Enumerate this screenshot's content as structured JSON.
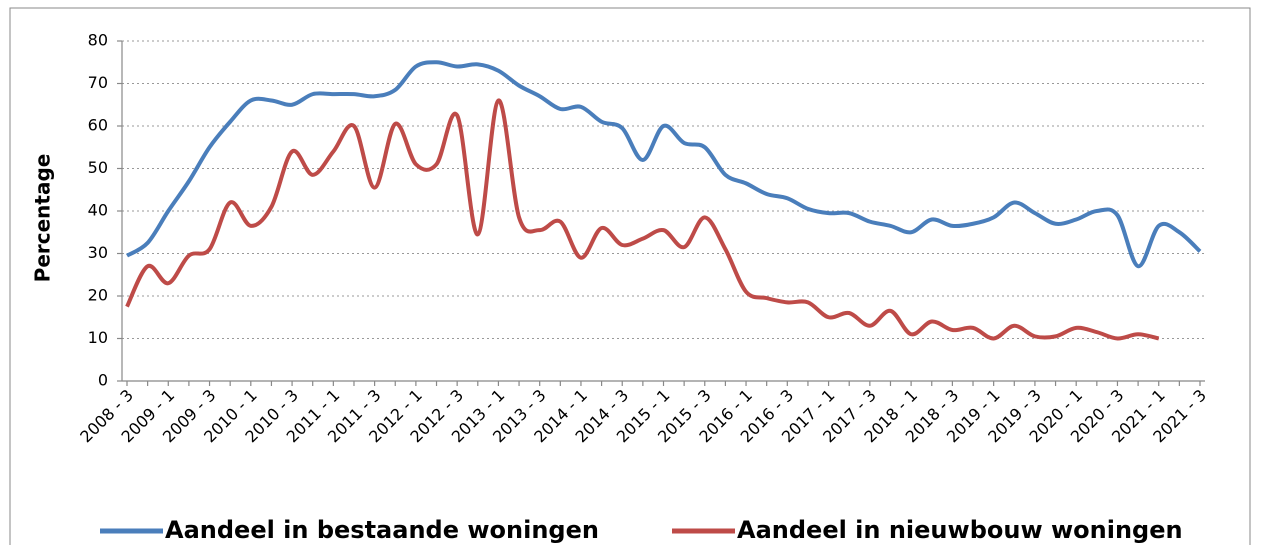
{
  "chart_data": {
    "type": "line",
    "y_label": "Percentage",
    "categories": [
      "2008 - 3",
      null,
      "2009 - 1",
      null,
      "2009 - 3",
      null,
      "2010 - 1",
      null,
      "2010 - 3",
      null,
      "2011 - 1",
      null,
      "2011 - 3",
      null,
      "2012 - 1",
      null,
      "2012 - 3",
      null,
      "2013 - 1",
      null,
      "2013 - 3",
      null,
      "2014 - 1",
      null,
      "2014 - 3",
      null,
      "2015 - 1",
      null,
      "2015 - 3",
      null,
      "2016 - 1",
      null,
      "2016 - 3",
      null,
      "2017 - 1",
      null,
      "2017 - 3",
      null,
      "2018 - 1",
      null,
      "2018 - 3",
      null,
      "2019 - 1",
      null,
      "2019 - 3",
      null,
      "2020 - 1",
      null,
      "2020 - 3",
      null,
      "2021 - 1",
      null,
      "2021 - 3"
    ],
    "series": [
      {
        "name": "Aandeel in bestaande woningen",
        "color": "#4a7ebb",
        "values": [
          29.5,
          32.5,
          40,
          47,
          55,
          61,
          66,
          66,
          65,
          67.5,
          67.5,
          67.5,
          67,
          68.5,
          74,
          75,
          74,
          74.5,
          73,
          69.5,
          67,
          64,
          64.5,
          61,
          59.5,
          52,
          60,
          56,
          55,
          48.5,
          46.5,
          44,
          43,
          40.5,
          39.5,
          39.5,
          37.5,
          36.5,
          35,
          38,
          36.5,
          37,
          38.5,
          42,
          39.5,
          37,
          38,
          40,
          39,
          27,
          36.5,
          35,
          30.5
        ]
      },
      {
        "name": "Aandeel in nieuwbouw woningen",
        "color": "#be4b48",
        "values": [
          17.5,
          27,
          23,
          29.5,
          31,
          42,
          36.5,
          41,
          54,
          48.5,
          54,
          60,
          45.5,
          60.5,
          51,
          51,
          62.5,
          34.5,
          66,
          38.5,
          35.5,
          37.5,
          29,
          36,
          32,
          33.5,
          35.5,
          31.5,
          38.5,
          31,
          21,
          19.5,
          18.5,
          18.5,
          15,
          16,
          13,
          16.5,
          11,
          14,
          12,
          12.5,
          10,
          13,
          10.5,
          10.5,
          12.5,
          11.5,
          10,
          11,
          10,
          null,
          null
        ]
      }
    ],
    "ylim": [
      0,
      80
    ],
    "yticks": [
      0,
      10,
      20,
      30,
      40,
      50,
      60,
      70,
      80
    ],
    "grid": true
  }
}
